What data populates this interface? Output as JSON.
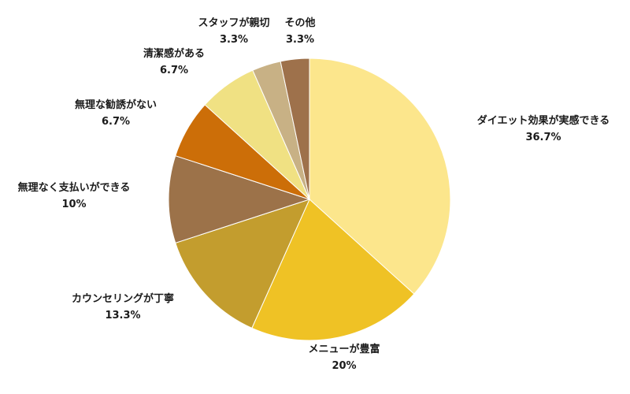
{
  "chart_data": {
    "type": "pie",
    "start": "top",
    "direction": "clockwise",
    "slices": [
      {
        "label": "ダイエット効果が実感できる",
        "value": 36.7,
        "value_label": "36.7%",
        "color": "#FCE68C"
      },
      {
        "label": "メニューが豊富",
        "value": 20,
        "value_label": "20%",
        "color": "#EFC225"
      },
      {
        "label": "カウンセリングが丁寧",
        "value": 13.3,
        "value_label": "13.3%",
        "color": "#C39D2E"
      },
      {
        "label": "無理なく支払いができる",
        "value": 10,
        "value_label": "10%",
        "color": "#9C7249"
      },
      {
        "label": "無理な勧誘がない",
        "value": 6.7,
        "value_label": "6.7%",
        "color": "#CC6E08"
      },
      {
        "label": "清潔感がある",
        "value": 6.7,
        "value_label": "6.7%",
        "color": "#F0E183"
      },
      {
        "label": "スタッフが親切",
        "value": 3.3,
        "value_label": "3.3%",
        "color": "#C8B185"
      },
      {
        "label": "その他",
        "value": 3.3,
        "value_label": "3.3%",
        "color": "#9E714B"
      }
    ]
  }
}
